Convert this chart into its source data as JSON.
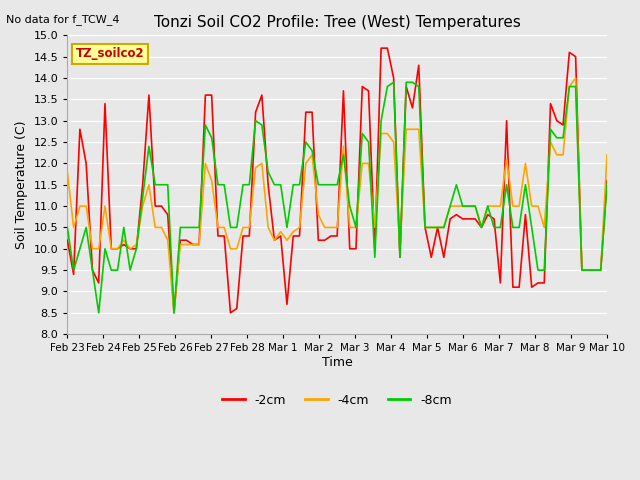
{
  "title": "Tonzi Soil CO2 Profile: Tree (West) Temperatures",
  "no_data_label": "No data for f_TCW_4",
  "ylabel": "Soil Temperature (C)",
  "xlabel": "Time",
  "legend_label": "TZ_soilco2",
  "ylim": [
    8.0,
    15.0
  ],
  "yticks": [
    8.0,
    8.5,
    9.0,
    9.5,
    10.0,
    10.5,
    11.0,
    11.5,
    12.0,
    12.5,
    13.0,
    13.5,
    14.0,
    14.5,
    15.0
  ],
  "background_color": "#e8e8e8",
  "line_colors": {
    "-2cm": "#ff0000",
    "-4cm": "#ffa500",
    "-8cm": "#00cc00"
  },
  "line_width": 1.2,
  "x_tick_labels": [
    "Feb 23",
    "Feb 24",
    "Feb 25",
    "Feb 26",
    "Feb 27",
    "Feb 28",
    "Mar 1",
    "Mar 2",
    "Mar 3",
    "Mar 4",
    "Mar 5",
    "Mar 6",
    "Mar 7",
    "Mar 8",
    "Mar 9",
    "Mar 10"
  ],
  "series_2cm": [
    10.2,
    9.4,
    12.8,
    12.0,
    9.5,
    9.2,
    13.4,
    10.0,
    10.0,
    10.1,
    10.0,
    10.0,
    11.5,
    13.6,
    11.0,
    11.0,
    10.8,
    8.5,
    10.2,
    10.2,
    10.1,
    10.1,
    13.6,
    13.6,
    10.3,
    10.3,
    8.5,
    8.6,
    10.3,
    10.3,
    13.2,
    13.6,
    11.5,
    10.2,
    10.3,
    8.7,
    10.3,
    10.3,
    13.2,
    13.2,
    10.2,
    10.2,
    10.3,
    10.3,
    13.7,
    10.0,
    10.0,
    13.8,
    13.7,
    10.0,
    14.7,
    14.7,
    14.0,
    9.8,
    13.8,
    13.3,
    14.3,
    10.5,
    9.8,
    10.5,
    9.8,
    10.7,
    10.8,
    10.7,
    10.7,
    10.7,
    10.5,
    10.8,
    10.7,
    9.2,
    13.0,
    9.1,
    9.1,
    10.8,
    9.1,
    9.2,
    9.2,
    13.4,
    13.0,
    12.9,
    14.6,
    14.5,
    9.5,
    9.5,
    9.5,
    9.5,
    11.6
  ],
  "series_4cm": [
    11.8,
    10.5,
    11.0,
    11.0,
    10.0,
    10.0,
    11.0,
    10.0,
    10.0,
    10.2,
    10.0,
    10.1,
    11.0,
    11.5,
    10.5,
    10.5,
    10.2,
    8.5,
    10.1,
    10.1,
    10.1,
    10.1,
    12.0,
    11.6,
    10.5,
    10.5,
    10.0,
    10.0,
    10.5,
    10.5,
    11.9,
    12.0,
    10.5,
    10.2,
    10.4,
    10.2,
    10.4,
    10.5,
    12.0,
    12.2,
    10.8,
    10.5,
    10.5,
    10.5,
    12.4,
    10.5,
    10.5,
    12.0,
    12.0,
    10.5,
    12.7,
    12.7,
    12.5,
    10.0,
    12.8,
    12.8,
    12.8,
    10.5,
    10.5,
    10.5,
    10.5,
    11.0,
    11.0,
    11.0,
    11.0,
    11.0,
    10.5,
    11.0,
    11.0,
    11.0,
    12.1,
    11.0,
    11.0,
    12.0,
    11.0,
    11.0,
    10.5,
    12.5,
    12.2,
    12.2,
    13.8,
    14.0,
    9.5,
    9.5,
    9.5,
    9.5,
    12.2
  ],
  "series_8cm": [
    10.5,
    9.5,
    10.0,
    10.5,
    9.5,
    8.5,
    10.0,
    9.5,
    9.5,
    10.5,
    9.5,
    10.0,
    11.2,
    12.4,
    11.5,
    11.5,
    11.5,
    8.5,
    10.5,
    10.5,
    10.5,
    10.5,
    12.9,
    12.6,
    11.5,
    11.5,
    10.5,
    10.5,
    11.5,
    11.5,
    13.0,
    12.9,
    11.8,
    11.5,
    11.5,
    10.5,
    11.5,
    11.5,
    12.5,
    12.3,
    11.5,
    11.5,
    11.5,
    11.5,
    12.2,
    11.0,
    10.5,
    12.7,
    12.5,
    9.8,
    13.0,
    13.8,
    13.9,
    9.8,
    13.9,
    13.9,
    13.8,
    10.5,
    10.5,
    10.5,
    10.5,
    11.0,
    11.5,
    11.0,
    11.0,
    11.0,
    10.5,
    11.0,
    10.5,
    10.5,
    11.5,
    10.5,
    10.5,
    11.5,
    10.5,
    9.5,
    9.5,
    12.8,
    12.6,
    12.6,
    13.8,
    13.8,
    9.5,
    9.5,
    9.5,
    9.5,
    11.5
  ]
}
